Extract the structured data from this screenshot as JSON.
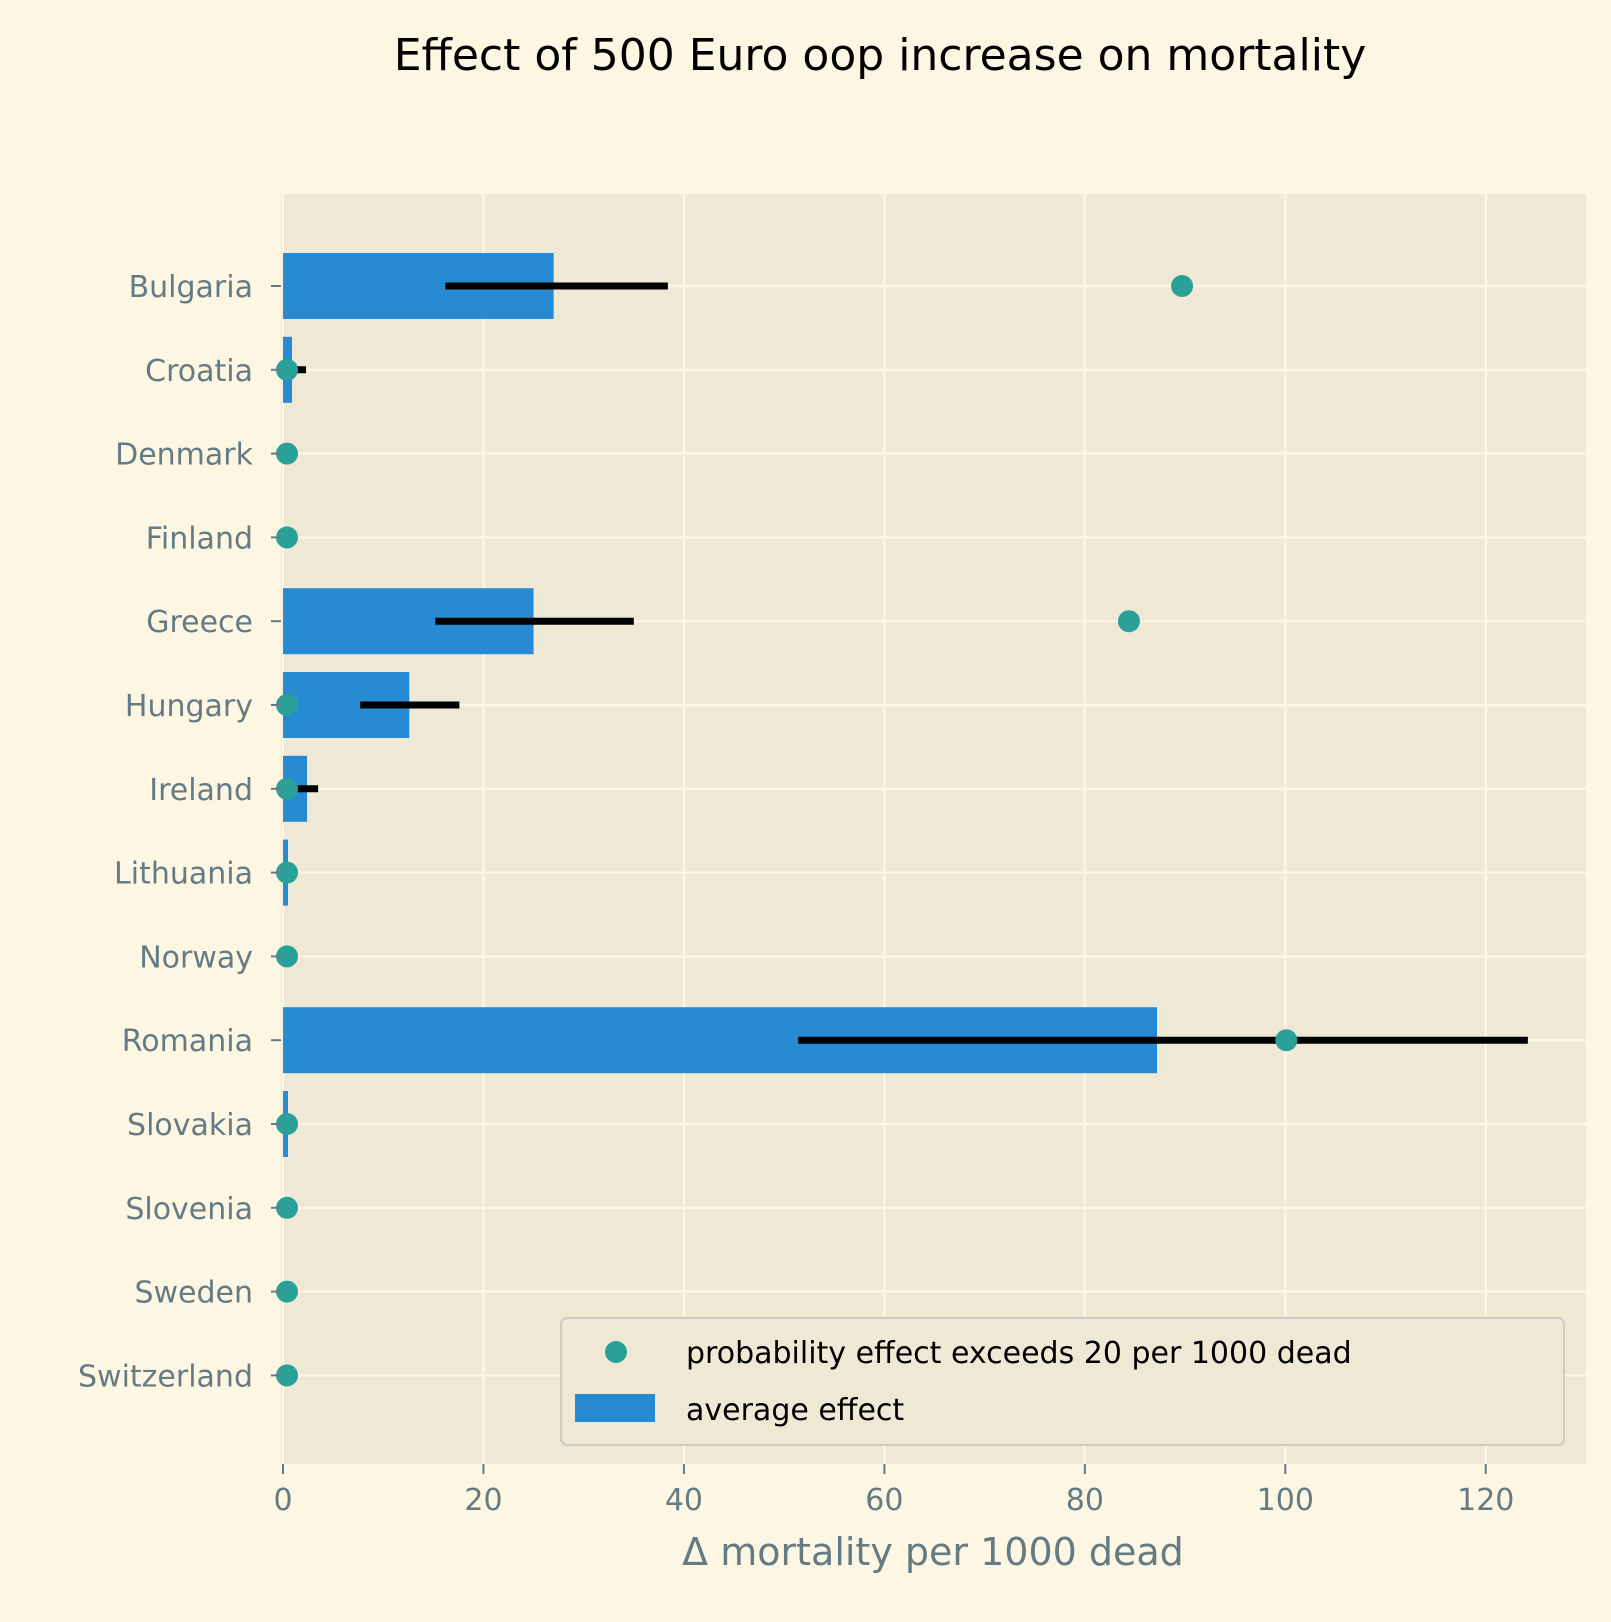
{
  "chart_data": {
    "type": "bar",
    "orientation": "horizontal",
    "title": "Effect of 500 Euro oop increase on mortality",
    "xlabel": "Δ mortality per 1000 dead",
    "ylabel": "",
    "xlim": [
      0,
      130
    ],
    "xticks": [
      0,
      20,
      40,
      60,
      80,
      100,
      120
    ],
    "grid": true,
    "legend_position": "lower-right",
    "categories": [
      "Bulgaria",
      "Croatia",
      "Denmark",
      "Finland",
      "Greece",
      "Hungary",
      "Ireland",
      "Lithuania",
      "Norway",
      "Romania",
      "Slovakia",
      "Slovenia",
      "Sweden",
      "Switzerland"
    ],
    "series": [
      {
        "name": "average effect",
        "kind": "bar",
        "color": "#268bd2",
        "values": [
          27.0,
          0.9,
          0.0,
          0.0,
          25.0,
          12.6,
          2.4,
          0.5,
          0.0,
          87.2,
          0.5,
          0.0,
          0.0,
          0.0
        ],
        "interval_low": [
          16.2,
          0.1,
          null,
          null,
          15.2,
          7.7,
          1.4,
          0.2,
          null,
          51.4,
          0.2,
          null,
          null,
          null
        ],
        "interval_high": [
          38.4,
          2.3,
          null,
          null,
          35.0,
          17.6,
          3.5,
          1.1,
          null,
          124.2,
          1.1,
          null,
          null,
          null
        ]
      },
      {
        "name": "probability effect exceeds 20 per 1000 dead",
        "kind": "scatter",
        "color": "#2aa198",
        "values": [
          89.7,
          0.4,
          0.4,
          0.4,
          84.4,
          0.4,
          0.4,
          0.4,
          0.4,
          100.1,
          0.4,
          0.4,
          0.4,
          0.4
        ]
      }
    ]
  },
  "colors": {
    "figure_background": "#fdf6e3",
    "axes_background": "#eee8d5",
    "grid": "#fdf6e3",
    "tick_text": "#657b83",
    "error_bar": "#000000"
  }
}
